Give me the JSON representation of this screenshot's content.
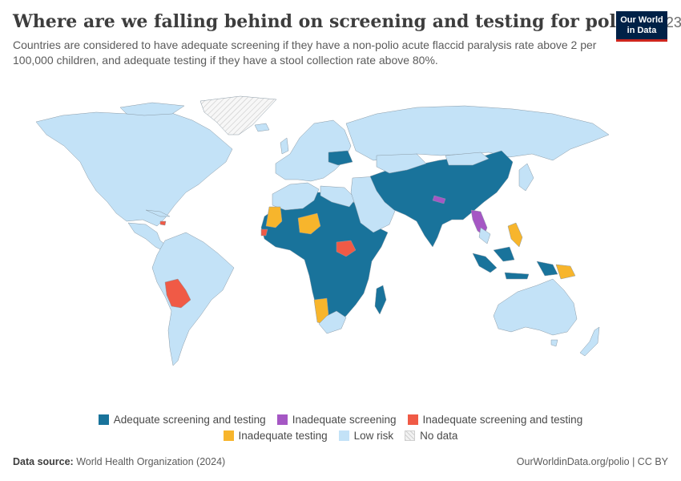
{
  "header": {
    "title": "Where are we falling behind on screening and testing for polio?",
    "year": "2023",
    "subtitle": "Countries are considered to have adequate screening if they have a non-polio acute flaccid paralysis rate above 2 per 100,000 children, and adequate testing if they have a stool collection rate above 80%."
  },
  "logo": {
    "line1": "Our World",
    "line2": "in Data"
  },
  "colors": {
    "adequate": "#19739b",
    "inadequate_screening": "#a557c4",
    "inadequate_both": "#f05a46",
    "inadequate_testing": "#f7b52c",
    "low_risk": "#c3e2f7",
    "no_data": "#f2f2f2",
    "border": "#8a9aa6"
  },
  "legend": {
    "items": [
      {
        "key": "adequate",
        "label": "Adequate screening and testing",
        "color": "#19739b"
      },
      {
        "key": "inadequate_screening",
        "label": "Inadequate screening",
        "color": "#a557c4"
      },
      {
        "key": "inadequate_both",
        "label": "Inadequate screening and testing",
        "color": "#f05a46"
      },
      {
        "key": "inadequate_testing",
        "label": "Inadequate testing",
        "color": "#f7b52c"
      },
      {
        "key": "low_risk",
        "label": "Low risk",
        "color": "#c3e2f7"
      },
      {
        "key": "no_data",
        "label": "No data",
        "color": "#f2f2f2"
      }
    ]
  },
  "footer": {
    "source_label": "Data source:",
    "source_text": "World Health Organization (2024)",
    "link_text": "OurWorldinData.org/polio | CC BY"
  }
}
